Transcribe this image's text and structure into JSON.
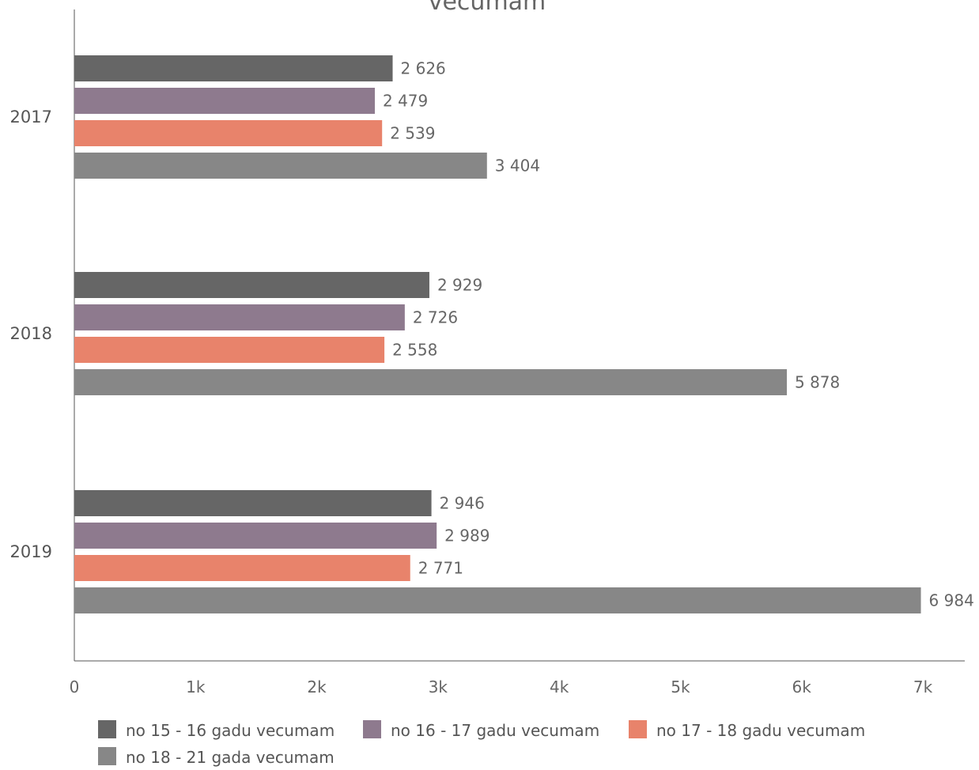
{
  "chart_data": {
    "type": "bar",
    "orientation": "horizontal",
    "title": "vecumam",
    "categories": [
      "2017",
      "2018",
      "2019"
    ],
    "series": [
      {
        "name": "no 15 - 16 gadu vecumam",
        "color": "#666666",
        "values": [
          2626,
          2929,
          2946
        ],
        "labels": [
          "2 626",
          "2 929",
          "2 946"
        ]
      },
      {
        "name": "no 16 - 17 gadu vecumam",
        "color": "#8e7a8e",
        "values": [
          2479,
          2726,
          2989
        ],
        "labels": [
          "2 479",
          "2 726",
          "2 989"
        ]
      },
      {
        "name": "no 17 - 18 gadu vecumam",
        "color": "#e8836b",
        "values": [
          2539,
          2558,
          2771
        ],
        "labels": [
          "2 539",
          "2 558",
          "2 771"
        ]
      },
      {
        "name": "no 18 - 21 gada vecumam",
        "color": "#878787",
        "values": [
          3404,
          5878,
          6984
        ],
        "labels": [
          "3 404",
          "5 878",
          "6 984"
        ]
      }
    ],
    "xlim": [
      0,
      7000
    ],
    "x_ticks": [
      "0",
      "1k",
      "2k",
      "3k",
      "4k",
      "5k",
      "6k",
      "7k"
    ],
    "grid": false,
    "legend_position": "bottom"
  }
}
